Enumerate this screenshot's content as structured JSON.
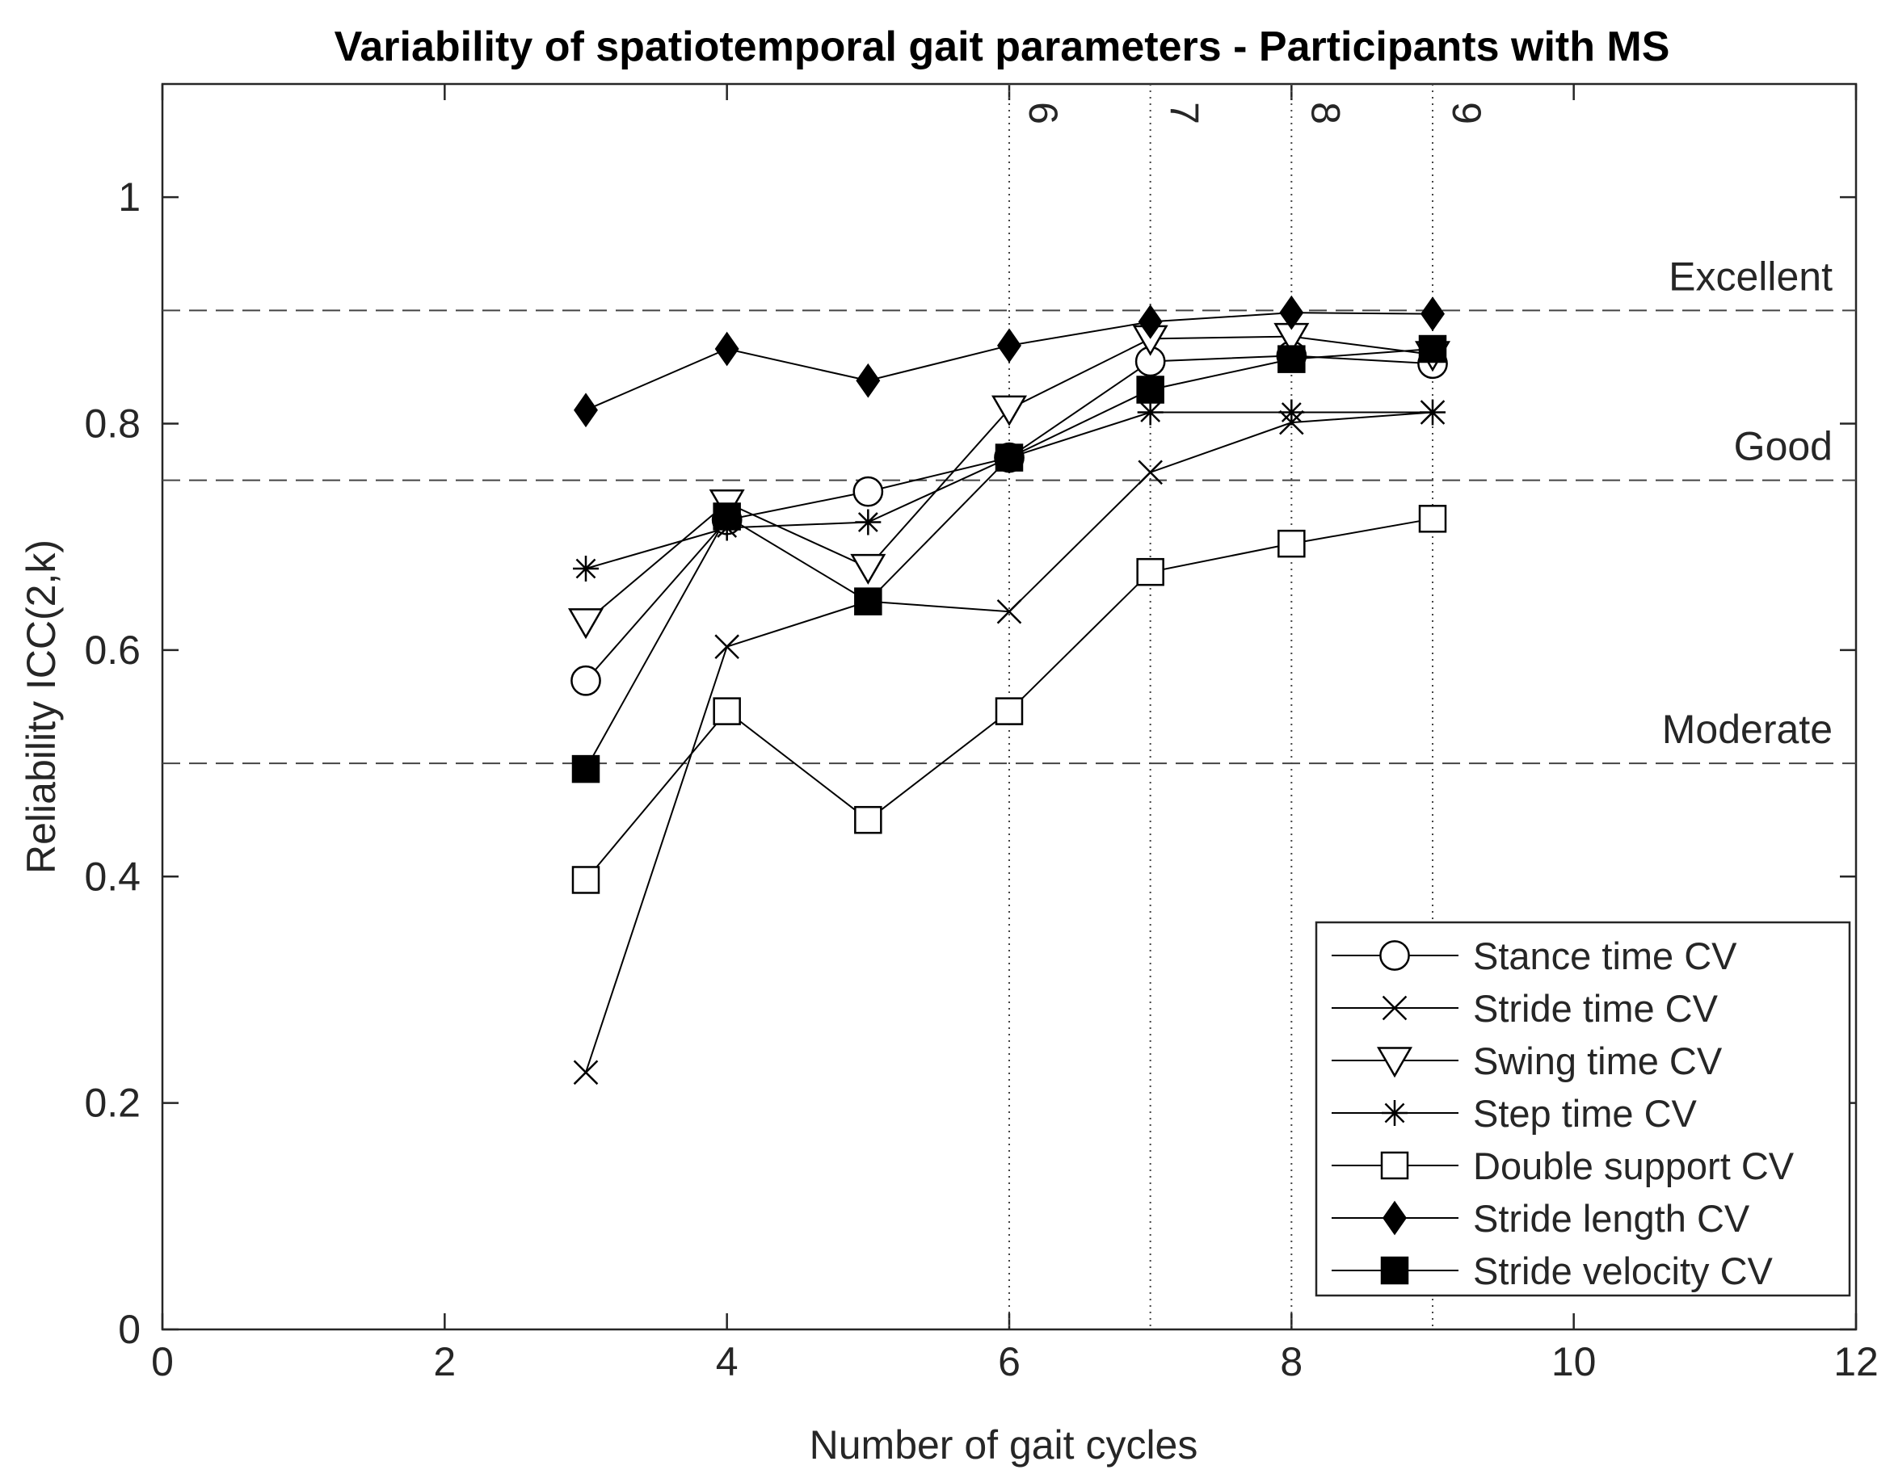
{
  "chart_data": {
    "type": "line",
    "title": "Variability of spatiotemporal gait parameters - Participants with MS",
    "xlabel": "Number of gait cycles",
    "ylabel": "Reliability ICC(2,k)",
    "xlim": [
      0,
      12
    ],
    "ylim": [
      0,
      1.1
    ],
    "xticks": [
      0,
      2,
      4,
      6,
      8,
      10,
      12
    ],
    "yticks": [
      0,
      0.2,
      0.4,
      0.6,
      0.8,
      1
    ],
    "ytick_labels": [
      "0",
      "0.2",
      "0.4",
      "0.6",
      "0.8",
      "1"
    ],
    "x": [
      3,
      4,
      5,
      6,
      7,
      8,
      9
    ],
    "series": [
      {
        "name": "Stance time CV",
        "marker": "circle",
        "values": [
          0.573,
          0.715,
          0.74,
          0.77,
          0.855,
          0.86,
          0.853
        ]
      },
      {
        "name": "Stride time CV",
        "marker": "x",
        "values": [
          0.227,
          0.603,
          0.643,
          0.634,
          0.757,
          0.801,
          0.81
        ]
      },
      {
        "name": "Swing time CV",
        "marker": "triangle-down",
        "values": [
          0.625,
          0.73,
          0.673,
          0.813,
          0.875,
          0.877,
          0.861
        ]
      },
      {
        "name": "Step time CV",
        "marker": "asterisk",
        "values": [
          0.672,
          0.708,
          0.713,
          0.77,
          0.81,
          0.81,
          0.81
        ]
      },
      {
        "name": "Double support CV",
        "marker": "square-open",
        "values": [
          0.397,
          0.546,
          0.45,
          0.546,
          0.669,
          0.694,
          0.716
        ]
      },
      {
        "name": "Stride length CV",
        "marker": "diamond-filled",
        "values": [
          0.812,
          0.866,
          0.838,
          0.869,
          0.89,
          0.898,
          0.897
        ]
      },
      {
        "name": "Stride velocity CV",
        "marker": "square-filled",
        "values": [
          0.495,
          0.718,
          0.643,
          0.77,
          0.83,
          0.857,
          0.866
        ]
      }
    ],
    "reference_lines": [
      {
        "label": "Excellent",
        "y": 0.9
      },
      {
        "label": "Good",
        "y": 0.75
      },
      {
        "label": "Moderate",
        "y": 0.5
      }
    ],
    "vertical_lines": [
      {
        "label": "6",
        "x": 6
      },
      {
        "label": "7",
        "x": 7
      },
      {
        "label": "8",
        "x": 8
      },
      {
        "label": "9",
        "x": 9
      }
    ],
    "legend": "bottom-right",
    "grid": false
  }
}
